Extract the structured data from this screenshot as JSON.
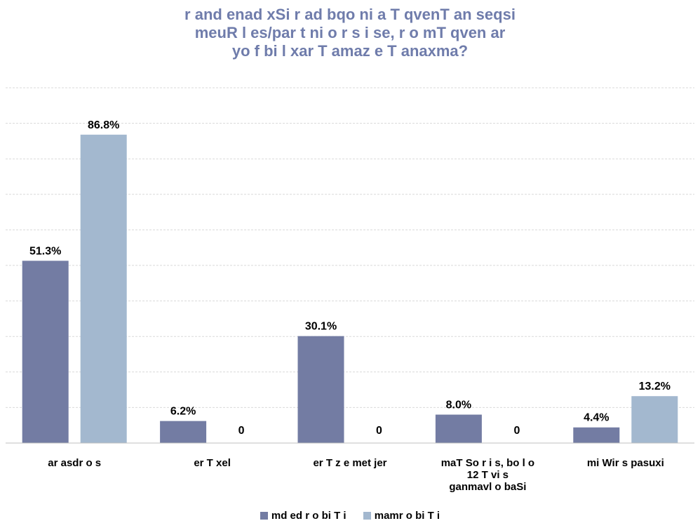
{
  "chart_data": {
    "type": "bar",
    "title_lines": [
      "r and enad xSi r ad bqo ni a T qvenT an seqsi",
      "meuR l es/par t ni o r s i se, r o mT qven ar",
      "yo f bi l xar T amaz e T anaxma?"
    ],
    "categories": [
      [
        "ar asdr o s"
      ],
      [
        "er T xel"
      ],
      [
        "er T z e met jer"
      ],
      [
        "maT So r i s, bo l o",
        "12 T vi s",
        "ganmavl o baSi"
      ],
      [
        "mi Wir s pasuxi"
      ]
    ],
    "series": [
      {
        "name": "md ed r o bi T i",
        "color": "#737ca3",
        "values": [
          51.3,
          6.2,
          30.1,
          8.0,
          4.4
        ],
        "labels": [
          "51.3%",
          "6.2%",
          "30.1%",
          "8.0%",
          "4.4%"
        ]
      },
      {
        "name": "mamr o bi T i",
        "color": "#a3b8cf",
        "values": [
          86.8,
          0,
          0,
          0,
          13.2
        ],
        "labels": [
          "86.8%",
          "0",
          "0",
          "0",
          "13.2%"
        ]
      }
    ],
    "ylim": [
      0,
      100
    ],
    "grid": true,
    "legend_position": "bottom"
  }
}
